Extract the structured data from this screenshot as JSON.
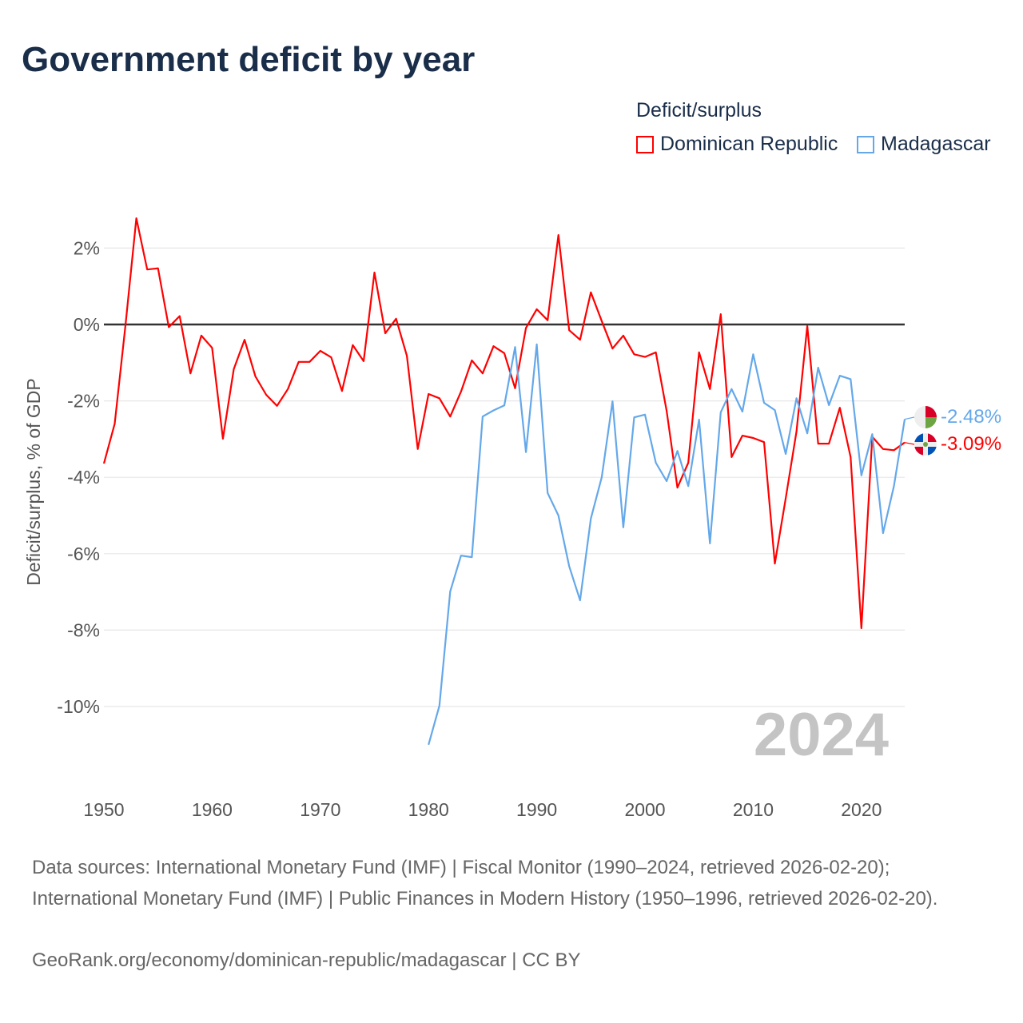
{
  "title": "Government deficit by year",
  "legend": {
    "title": "Deficit/surplus",
    "items": [
      {
        "name": "Dominican Republic",
        "color": "#ff0000"
      },
      {
        "name": "Madagascar",
        "color": "#64a8ea"
      }
    ]
  },
  "year_watermark": "2024",
  "end_labels": {
    "madagascar": "-2.48%",
    "dominican_republic": "-3.09%"
  },
  "footer": {
    "sources": "Data sources: International Monetary Fund (IMF) | Fiscal Monitor (1990–2024, retrieved 2026-02-20); International Monetary Fund (IMF) | Public Finances in Modern History (1950–1996, retrieved 2026-02-20).",
    "link": "GeoRank.org/economy/dominican-republic/madagascar | CC BY"
  },
  "chart_data": {
    "type": "line",
    "title": "Government deficit by year",
    "xlabel": "",
    "ylabel": "Deficit/surplus, % of GDP",
    "xlim": [
      1950,
      2024
    ],
    "ylim": [
      -11.5,
      3
    ],
    "x_ticks": [
      1950,
      1960,
      1970,
      1980,
      1990,
      2000,
      2010,
      2020
    ],
    "x_tick_labels": [
      "1950",
      "1960",
      "1970",
      "1980",
      "1990",
      "2000",
      "2010",
      "2020"
    ],
    "y_ticks": [
      2,
      0,
      -2,
      -4,
      -6,
      -8,
      -10
    ],
    "y_tick_labels": [
      "2%",
      "0%",
      "-2%",
      "-4%",
      "-6%",
      "-8%",
      "-10%"
    ],
    "grid": true,
    "legend_position": "top-right",
    "series": [
      {
        "name": "Dominican Republic",
        "color": "#ff0000",
        "start_year": 1950,
        "values": [
          -3.64,
          -2.6,
          0,
          2.78,
          1.44,
          1.47,
          -0.07,
          0.22,
          -1.28,
          -0.29,
          -0.61,
          -2.99,
          -1.17,
          -0.4,
          -1.36,
          -1.84,
          -2.13,
          -1.69,
          -0.98,
          -0.98,
          -0.69,
          -0.86,
          -1.74,
          -0.54,
          -0.96,
          1.36,
          -0.23,
          0.15,
          -0.82,
          -3.26,
          -1.82,
          -1.93,
          -2.41,
          -1.76,
          -0.94,
          -1.28,
          -0.57,
          -0.75,
          -1.67,
          -0.09,
          0.4,
          0.11,
          2.34,
          -0.15,
          -0.4,
          0.84,
          0.09,
          -0.63,
          -0.29,
          -0.78,
          -0.85,
          -0.73,
          -2.26,
          -4.27,
          -3.62,
          -0.73,
          -1.69,
          0.27,
          -3.47,
          -2.91,
          -2.97,
          -3.08,
          -6.26,
          -4.55,
          -2.8,
          -0.04,
          -3.12,
          -3.12,
          -2.18,
          -3.47,
          -7.95,
          -2.94,
          -3.26,
          -3.29,
          -3.09
        ]
      },
      {
        "name": "Madagascar",
        "color": "#64a8ea",
        "start_year": 1980,
        "values": [
          -11.0,
          -9.98,
          -6.99,
          -6.05,
          -6.09,
          -2.41,
          -2.25,
          -2.12,
          -0.59,
          -3.34,
          -0.52,
          -4.41,
          -5.0,
          -6.33,
          -7.22,
          -5.08,
          -4.0,
          -2.01,
          -5.31,
          -2.43,
          -2.36,
          -3.62,
          -4.1,
          -3.31,
          -4.23,
          -2.49,
          -5.73,
          -2.3,
          -1.69,
          -2.28,
          -0.78,
          -2.05,
          -2.24,
          -3.39,
          -1.93,
          -2.85,
          -1.13,
          -2.11,
          -1.34,
          -1.43,
          -3.95,
          -2.87,
          -5.46,
          -4.23,
          -2.48
        ]
      }
    ]
  }
}
